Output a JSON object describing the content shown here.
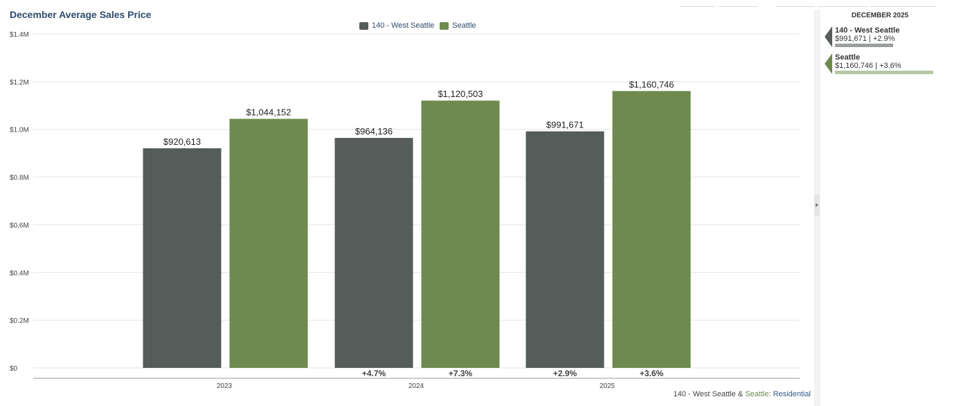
{
  "title": "December Average Sales Price",
  "legend": [
    {
      "label": "140 - West Seattle",
      "color": "#555c5a"
    },
    {
      "label": "Seattle",
      "color": "#6e8a4f"
    }
  ],
  "chart_data": {
    "type": "bar",
    "title": "December Average Sales Price",
    "categories": [
      "2023",
      "2024",
      "2025"
    ],
    "series": [
      {
        "name": "140 - West Seattle",
        "color": "#555c5a",
        "values": [
          920613,
          964136,
          991671
        ],
        "labels": [
          "$920,613",
          "$964,136",
          "$991,671"
        ],
        "changes": [
          "",
          "+4.7%",
          "+2.9%"
        ]
      },
      {
        "name": "Seattle",
        "color": "#6e8a4f",
        "values": [
          1044152,
          1120503,
          1160746
        ],
        "labels": [
          "$1,044,152",
          "$1,120,503",
          "$1,160,746"
        ],
        "changes": [
          "",
          "+7.3%",
          "+3.6%"
        ]
      }
    ],
    "ylim": [
      0,
      1400000
    ],
    "yticks": [
      0,
      200000,
      400000,
      600000,
      800000,
      1000000,
      1200000,
      1400000
    ],
    "ytick_labels": [
      "$0",
      "$0.2M",
      "$0.4M",
      "$0.6M",
      "$0.8M",
      "$1.0M",
      "$1.2M",
      "$1.4M"
    ],
    "xlabel": "",
    "ylabel": "",
    "grid": true
  },
  "footer": {
    "area": "140 - West Seattle",
    "amp": " & ",
    "city": "Seattle",
    "colon": ": ",
    "type": "Residential"
  },
  "side_panel": {
    "header": "DECEMBER 2025",
    "entries": [
      {
        "name": "140 - West Seattle",
        "value": "$991,671 | +2.9%",
        "color": "#555c5a",
        "bar_color": "#9a9e9c",
        "value_num": 991671
      },
      {
        "name": "Seattle",
        "value": "$1,160,746 | +3.6%",
        "color": "#6e8a4f",
        "bar_color": "#b7c7a4",
        "value_num": 1160746
      }
    ]
  }
}
